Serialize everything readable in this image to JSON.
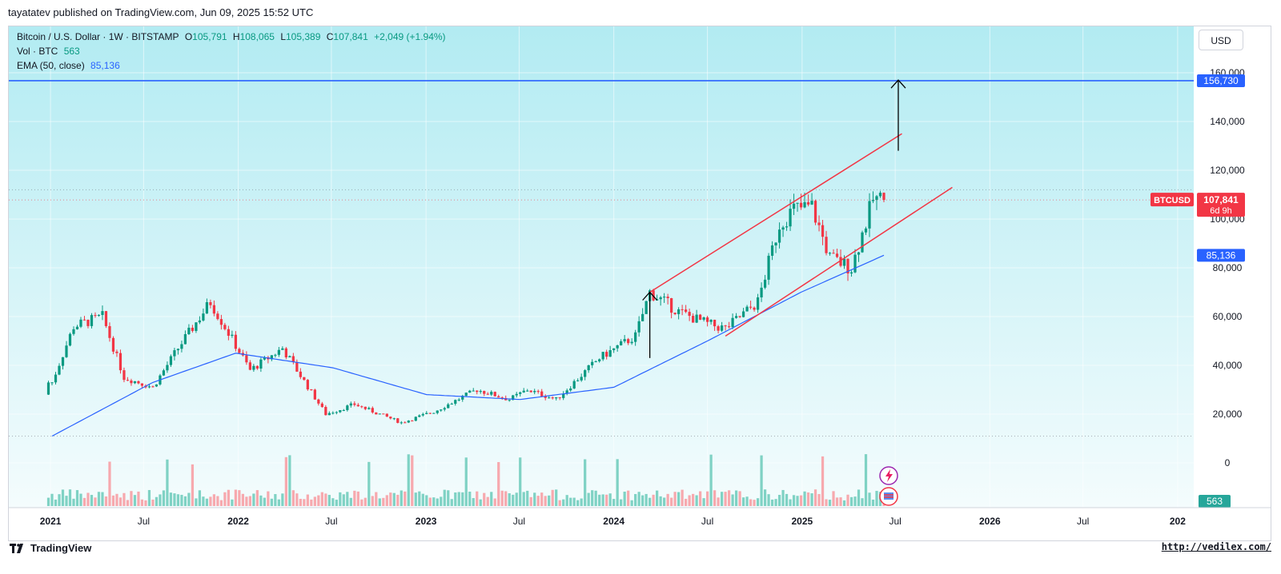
{
  "header": {
    "published": "tayatatev published on TradingView.com, Jun 09, 2025 15:52 UTC"
  },
  "legend": {
    "line1": {
      "symbol": "Bitcoin / U.S. Dollar · 1W · BITSTAMP",
      "o_label": "O",
      "o": "105,791",
      "h_label": "H",
      "h": "108,065",
      "l_label": "L",
      "l": "105,389",
      "c_label": "C",
      "c": "107,841",
      "change": "+2,049 (+1.94%)"
    },
    "line2": {
      "label": "Vol · BTC",
      "value": "563"
    },
    "line3": {
      "label": "EMA (50, close)",
      "value": "85,136"
    }
  },
  "currency_button": "USD",
  "price_axis": {
    "ticks": [
      "160,000",
      "140,000",
      "120,000",
      "100,000",
      "80,000",
      "60,000",
      "40,000",
      "20,000",
      "0"
    ],
    "labels": {
      "target": "156,730",
      "symbol": "BTCUSD",
      "last": "107,841",
      "countdown": "6d 9h",
      "ema": "85,136",
      "volume": "563"
    }
  },
  "time_axis": {
    "labels": [
      "2021",
      "Jul",
      "2022",
      "Jul",
      "2023",
      "Jul",
      "2024",
      "Jul",
      "2025",
      "Jul",
      "2026",
      "Jul",
      "202"
    ]
  },
  "footer": {
    "brand": "TradingView",
    "url": "http://vedilex.com/"
  },
  "colors": {
    "background_top": "#b2ebf2",
    "background_bottom": "#f4fcfd",
    "up": "#089981",
    "down": "#f23645",
    "ema": "#2962ff",
    "target_line": "#2962ff",
    "channel": "#f23645",
    "volume_up": "#7fd2c4",
    "volume_down": "#f7a9ae"
  },
  "chart_data": {
    "type": "candlestick",
    "title": "Bitcoin / U.S. Dollar · 1W · BITSTAMP",
    "ylim": [
      0,
      160000
    ],
    "y_scale": "linear",
    "grid": true,
    "horizontal_level": 156730,
    "current_close": 107841,
    "ema50_current": 85136,
    "ohlc_anchors": [
      {
        "t": "2021-01-04",
        "close": 33000
      },
      {
        "t": "2021-02-15",
        "close": 56000
      },
      {
        "t": "2021-04-12",
        "close": 60000
      },
      {
        "t": "2021-05-24",
        "close": 35000
      },
      {
        "t": "2021-07-19",
        "close": 31000
      },
      {
        "t": "2021-09-06",
        "close": 47000
      },
      {
        "t": "2021-11-08",
        "close": 66000
      },
      {
        "t": "2022-01-24",
        "close": 38000
      },
      {
        "t": "2022-03-28",
        "close": 47000
      },
      {
        "t": "2022-06-20",
        "close": 20000
      },
      {
        "t": "2022-08-15",
        "close": 24000
      },
      {
        "t": "2022-11-14",
        "close": 16500
      },
      {
        "t": "2023-01-16",
        "close": 21000
      },
      {
        "t": "2023-04-10",
        "close": 30000
      },
      {
        "t": "2023-06-12",
        "close": 26000
      },
      {
        "t": "2023-07-17",
        "close": 30000
      },
      {
        "t": "2023-09-11",
        "close": 26000
      },
      {
        "t": "2023-12-04",
        "close": 43000
      },
      {
        "t": "2024-02-12",
        "close": 52000
      },
      {
        "t": "2024-03-11",
        "close": 70000
      },
      {
        "t": "2024-05-06",
        "close": 62000
      },
      {
        "t": "2024-07-01",
        "close": 57000
      },
      {
        "t": "2024-08-05",
        "close": 55000
      },
      {
        "t": "2024-10-07",
        "close": 66000
      },
      {
        "t": "2024-11-18",
        "close": 98000
      },
      {
        "t": "2024-12-16",
        "close": 104000
      },
      {
        "t": "2025-01-20",
        "close": 105000
      },
      {
        "t": "2025-02-24",
        "close": 84000
      },
      {
        "t": "2025-04-07",
        "close": 80000
      },
      {
        "t": "2025-05-19",
        "close": 108000
      },
      {
        "t": "2025-06-09",
        "close": 107841
      }
    ],
    "ema50_anchors": [
      {
        "t": "2021-01-04",
        "value": 11000
      },
      {
        "t": "2021-07-19",
        "value": 33000
      },
      {
        "t": "2021-12-27",
        "value": 45000
      },
      {
        "t": "2022-07-04",
        "value": 39000
      },
      {
        "t": "2023-01-02",
        "value": 28000
      },
      {
        "t": "2023-07-03",
        "value": 26000
      },
      {
        "t": "2024-01-01",
        "value": 31000
      },
      {
        "t": "2024-07-01",
        "value": 50000
      },
      {
        "t": "2024-12-30",
        "value": 70000
      },
      {
        "t": "2025-06-09",
        "value": 85136
      }
    ],
    "channel_upper": [
      {
        "t": "2024-03-11",
        "value": 70000
      },
      {
        "t": "2025-07-14",
        "value": 135000
      }
    ],
    "channel_lower": [
      {
        "t": "2024-08-05",
        "value": 52000
      },
      {
        "t": "2025-10-20",
        "value": 113000
      }
    ],
    "arrows": [
      {
        "t": "2024-03-11",
        "from": 43000,
        "to": 70000
      },
      {
        "t": "2025-07-07",
        "from": 128000,
        "to": 157000
      }
    ]
  }
}
